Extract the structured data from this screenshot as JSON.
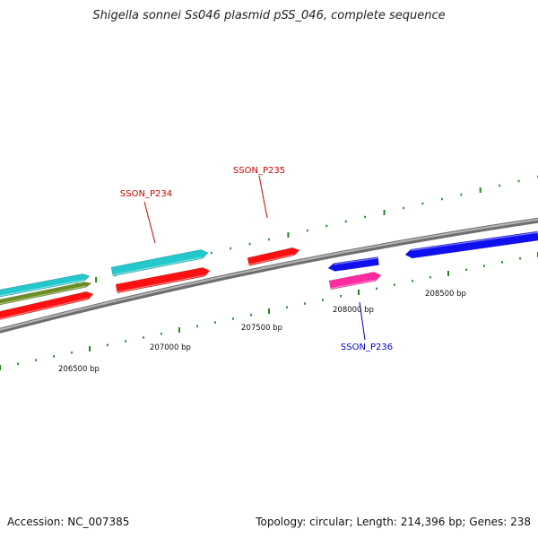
{
  "title": "Shigella sonnei Ss046 plasmid pSS_046, complete sequence",
  "footer": {
    "accession_label": "Accession:",
    "accession": "NC_007385",
    "topology_label": "Topology:",
    "topology": "circular",
    "length_label": "Length:",
    "length": "214,396 bp",
    "genes_label": "Genes:",
    "genes": "238"
  },
  "colors": {
    "backbone": "#8a8a8a",
    "tick": "#1f8a1f",
    "cyan": "#22c8cc",
    "olive": "#6b8e23",
    "red": "#ff1010",
    "blue": "#1010ee",
    "magenta": "#ff2aa0",
    "label_red": "#cc0000",
    "label_blue": "#0000cc"
  },
  "scale_labels": [
    "206500 bp",
    "207000 bp",
    "207500 bp",
    "208000 bp",
    "208500 bp"
  ],
  "gene_labels": [
    {
      "name": "SSON_P234",
      "color": "label_red"
    },
    {
      "name": "SSON_P235",
      "color": "label_red"
    },
    {
      "name": "SSON_P236",
      "color": "label_blue"
    }
  ],
  "features": [
    {
      "color": "cyan",
      "strand": "+"
    },
    {
      "color": "olive",
      "strand": "+"
    },
    {
      "color": "red",
      "strand": "+"
    },
    {
      "color": "cyan",
      "strand": "+"
    },
    {
      "color": "red",
      "strand": "+"
    },
    {
      "color": "red",
      "strand": "+"
    },
    {
      "color": "blue",
      "strand": "-"
    },
    {
      "color": "magenta",
      "strand": "+"
    },
    {
      "color": "blue",
      "strand": "-"
    }
  ]
}
